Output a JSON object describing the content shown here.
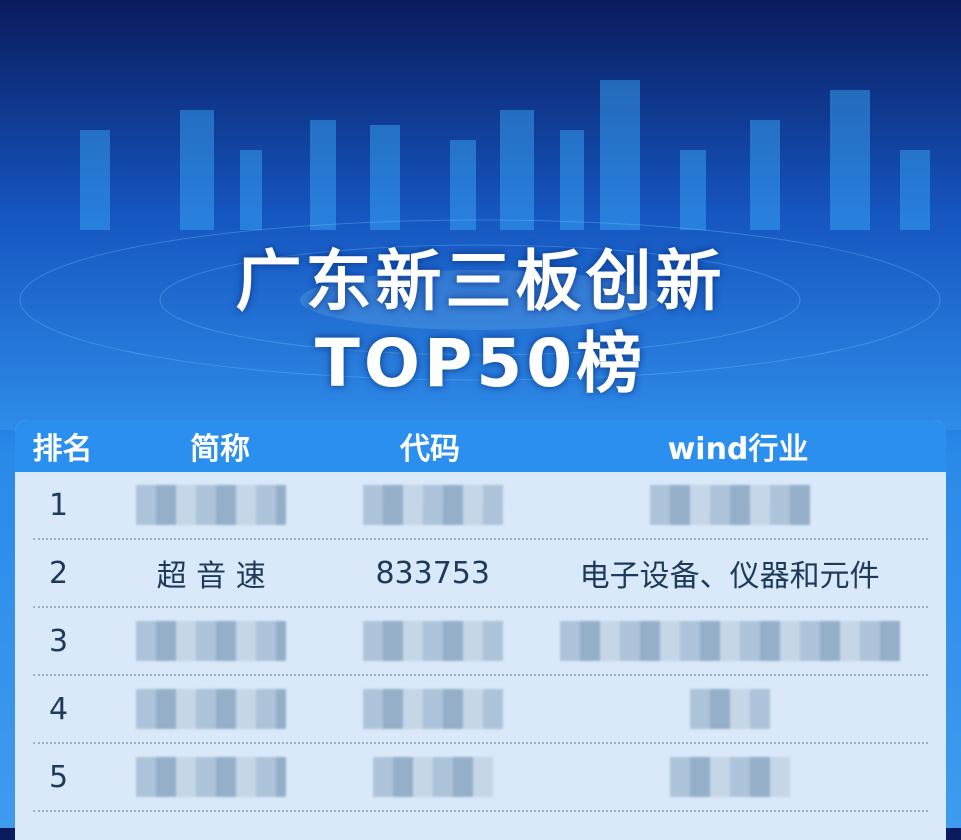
{
  "title": {
    "line1": "广东新三板创新",
    "line2": "TOP50榜"
  },
  "table": {
    "headers": [
      "排名",
      "简称",
      "代码",
      "wind行业"
    ],
    "rows": [
      {
        "rank": "1",
        "name": "",
        "code": "",
        "industry": "",
        "blurred": true
      },
      {
        "rank": "2",
        "name": "超 音 速",
        "code": "833753",
        "industry": "电子设备、仪器和元件",
        "blurred": false
      },
      {
        "rank": "3",
        "name": "",
        "code": "",
        "industry": "",
        "blurred": true
      },
      {
        "rank": "4",
        "name": "",
        "code": "",
        "industry": "",
        "blurred": true
      },
      {
        "rank": "5",
        "name": "",
        "code": "",
        "industry": "",
        "blurred": true
      }
    ]
  },
  "colors": {
    "header": "#2b8ff0",
    "table_bg": "#d9e9f9",
    "text": "#1e3a5a"
  }
}
